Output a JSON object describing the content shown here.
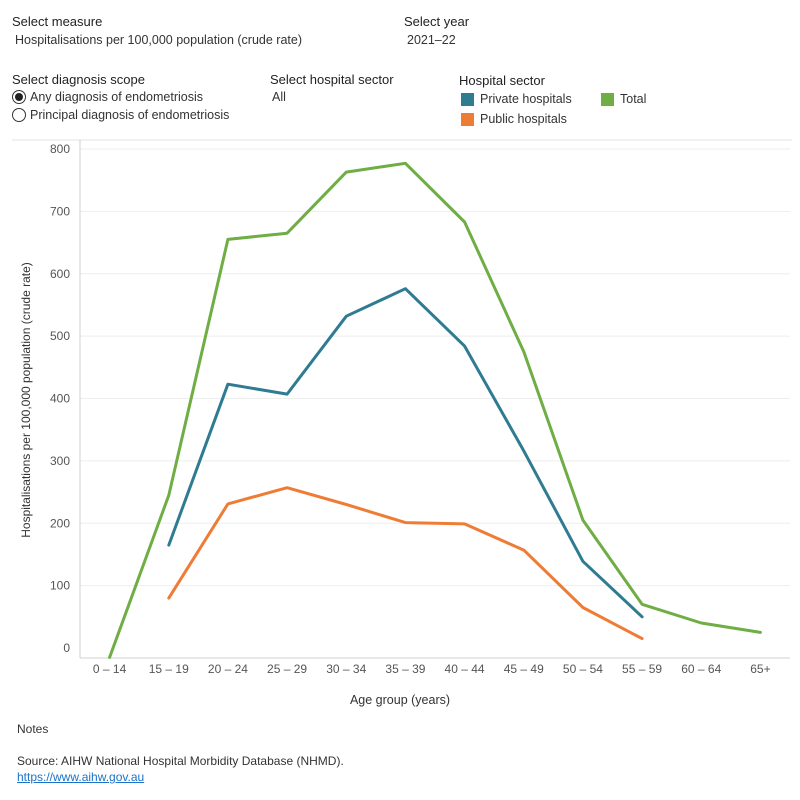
{
  "controls": {
    "measure": {
      "label": "Select measure",
      "value": "Hospitalisations per 100,000 population (crude rate)"
    },
    "year": {
      "label": "Select year",
      "value": "2021–22"
    },
    "scope": {
      "label": "Select diagnosis scope",
      "options": [
        "Any diagnosis of endometriosis",
        "Principal diagnosis of endometriosis"
      ],
      "selected": 0
    },
    "sector": {
      "label": "Select hospital sector",
      "value": "All"
    }
  },
  "legend": {
    "title": "Hospital sector",
    "items": [
      {
        "name": "Private hospitals",
        "color": "#2e7b92"
      },
      {
        "name": "Total",
        "color": "#6fad45"
      },
      {
        "name": "Public hospitals",
        "color": "#ee7c35"
      }
    ]
  },
  "chart_data": {
    "type": "line",
    "categories": [
      "0 – 14",
      "15 – 19",
      "20 – 24",
      "25 – 29",
      "30 – 34",
      "35 – 39",
      "40 – 44",
      "45 – 49",
      "50 – 54",
      "55 – 59",
      "60 – 64",
      "65+"
    ],
    "xlabel": "Age group (years)",
    "ylabel": "Hospitalisations per 100,000 population (crude rate)",
    "ylim": [
      0,
      800
    ],
    "yticks": [
      0,
      100,
      200,
      300,
      400,
      500,
      600,
      700,
      800
    ],
    "grid": true,
    "series": [
      {
        "name": "Total",
        "color": "#6fad45",
        "values": [
          -15,
          245,
          655,
          665,
          763,
          777,
          683,
          475,
          205,
          70,
          40,
          25
        ]
      },
      {
        "name": "Private hospitals",
        "color": "#2e7b92",
        "values": [
          null,
          165,
          423,
          407,
          532,
          576,
          484,
          316,
          139,
          50,
          null,
          null
        ]
      },
      {
        "name": "Public hospitals",
        "color": "#ee7c35",
        "values": [
          null,
          80,
          231,
          257,
          230,
          201,
          199,
          157,
          65,
          15,
          null,
          null
        ]
      }
    ]
  },
  "notes": {
    "label": "Notes"
  },
  "source": {
    "text": "Source: AIHW National Hospital Morbidity Database (NHMD).",
    "link": "https://www.aihw.gov.au"
  }
}
